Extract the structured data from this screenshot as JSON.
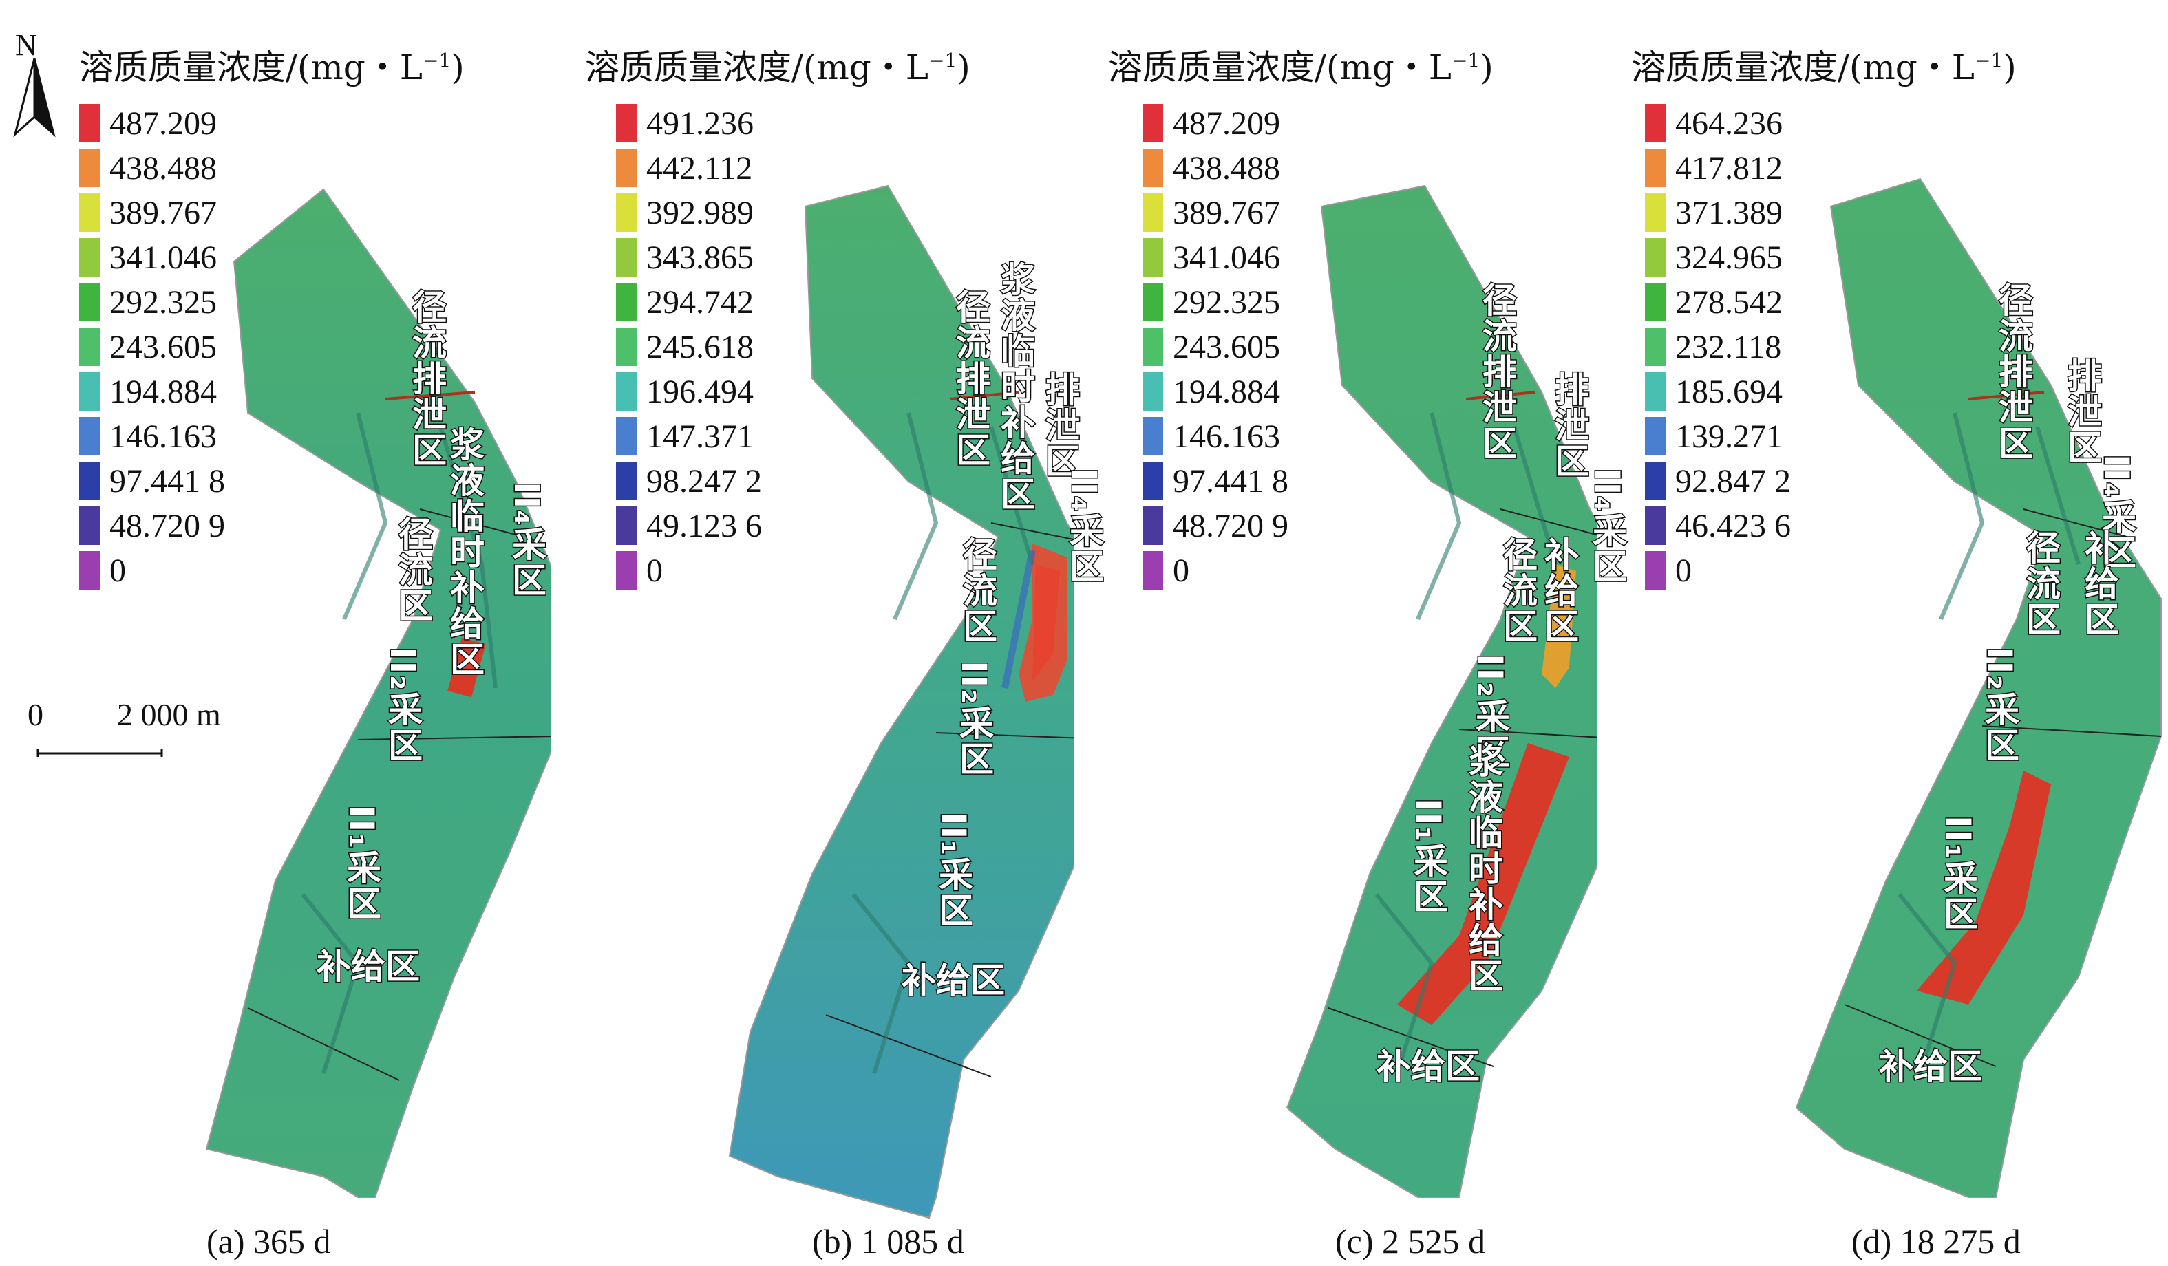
{
  "north": {
    "label": "N"
  },
  "scale": {
    "zero": "0",
    "distance": "2 000 m"
  },
  "legend_title": "溶质质量浓度/(mg・L",
  "legend_title_sup": "−1",
  "legend_title_end": ")",
  "legend_colors": [
    "#e0303a",
    "#ee8a3c",
    "#d9e03a",
    "#93c93c",
    "#3fb53f",
    "#4ec06a",
    "#48bfb0",
    "#4a7fd0",
    "#2c3fa8",
    "#4a3a9e",
    "#9b3fb0"
  ],
  "panels": [
    {
      "caption": "(a) 365 d",
      "legend_values": [
        "487.209",
        "438.488",
        "389.767",
        "341.046",
        "292.325",
        "243.605",
        "194.884",
        "146.163",
        "97.441 8",
        "48.720 9",
        "0"
      ],
      "labels": {
        "runoff_discharge": "径流排泄区",
        "slurry_recharge": "浆液临时补给区",
        "runoff": "径流区",
        "mining_II4": "II₄采区",
        "mining_II2": "II₂采区",
        "mining_II1": "II₁采区",
        "recharge": "补给区"
      }
    },
    {
      "caption": "(b) 1 085 d",
      "legend_values": [
        "491.236",
        "442.112",
        "392.989",
        "343.865",
        "294.742",
        "245.618",
        "196.494",
        "147.371",
        "98.247 2",
        "49.123 6",
        "0"
      ],
      "labels": {
        "runoff_discharge": "径流排泄区",
        "slurry_recharge": "浆液临时补给区",
        "discharge": "排泄区",
        "runoff": "径流区",
        "mining_II4": "II₄采区",
        "mining_II2": "II₂采区",
        "mining_II1": "II₁采区",
        "recharge": "补给区"
      }
    },
    {
      "caption": "(c) 2 525 d",
      "legend_values": [
        "487.209",
        "438.488",
        "389.767",
        "341.046",
        "292.325",
        "243.605",
        "194.884",
        "146.163",
        "97.441 8",
        "48.720 9",
        "0"
      ],
      "labels": {
        "runoff_discharge": "径流排泄区",
        "discharge": "排泄区",
        "recharge_small": "补给区",
        "runoff": "径流区",
        "mining_II4": "II₄采区",
        "mining_II2": "II₂采区",
        "mining_II1": "II₁采区",
        "slurry_recharge": "浆液临时补给区",
        "recharge": "补给区"
      }
    },
    {
      "caption": "(d) 18 275 d",
      "legend_values": [
        "464.236",
        "417.812",
        "371.389",
        "324.965",
        "278.542",
        "232.118",
        "185.694",
        "139.271",
        "92.847 2",
        "46.423 6",
        "0"
      ],
      "labels": {
        "runoff_discharge": "径流排泄区",
        "discharge": "排泄区",
        "mining_II4": "II₄采区",
        "recharge_small": "补给区",
        "runoff": "径流区",
        "mining_II2": "II₂采区",
        "mining_II1": "II₁采区",
        "recharge": "补给区"
      }
    }
  ]
}
